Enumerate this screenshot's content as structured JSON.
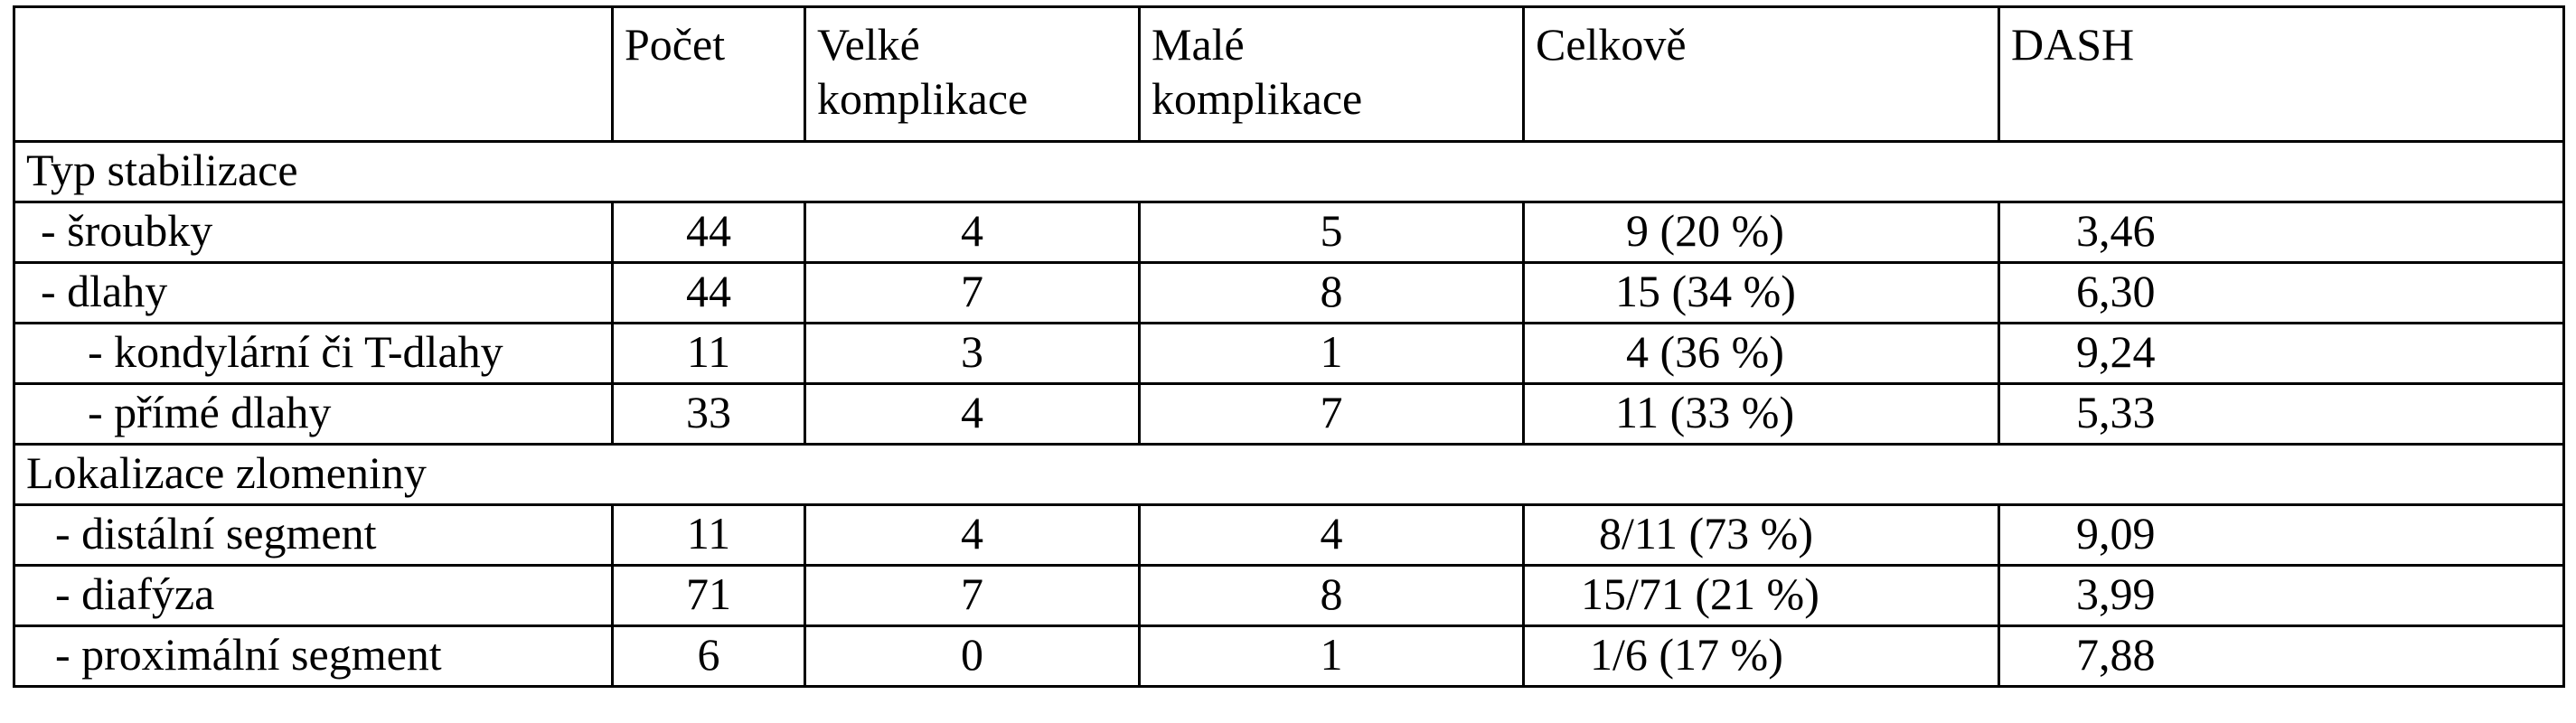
{
  "table": {
    "headers": {
      "label": "",
      "count": "Počet",
      "major": "Velké komplikace",
      "minor": "Malé komplikace",
      "total": "Celkově",
      "dash": "DASH"
    },
    "sections": [
      {
        "title": "Typ stabilizace",
        "rows": [
          {
            "label": "- šroubky",
            "count": "44",
            "major": "4",
            "minor": "5",
            "total": "9 (20 %)",
            "dash": "3,46"
          },
          {
            "label": "- dlahy",
            "count": "44",
            "major": "7",
            "minor": "8",
            "total": "15 (34 %)",
            "dash": "6,30"
          },
          {
            "label": "- kondylární či T-dlahy",
            "count": "11",
            "major": "3",
            "minor": "1",
            "total": "4 (36 %)",
            "dash": "9,24"
          },
          {
            "label": "- přímé dlahy",
            "count": "33",
            "major": "4",
            "minor": "7",
            "total": "11 (33 %)",
            "dash": "5,33"
          }
        ]
      },
      {
        "title": "Lokalizace zlomeniny",
        "rows": [
          {
            "label": "- distální segment",
            "count": "11",
            "major": "4",
            "minor": "4",
            "total": "8/11 (73 %)",
            "dash": "9,09"
          },
          {
            "label": "- diafýza",
            "count": "71",
            "major": "7",
            "minor": "8",
            "total": "15/71 (21 %)",
            "dash": "3,99"
          },
          {
            "label": "- proximální segment",
            "count": "6",
            "major": "0",
            "minor": "1",
            "total": "1/6 (17 %)",
            "dash": "7,88"
          }
        ]
      }
    ]
  }
}
